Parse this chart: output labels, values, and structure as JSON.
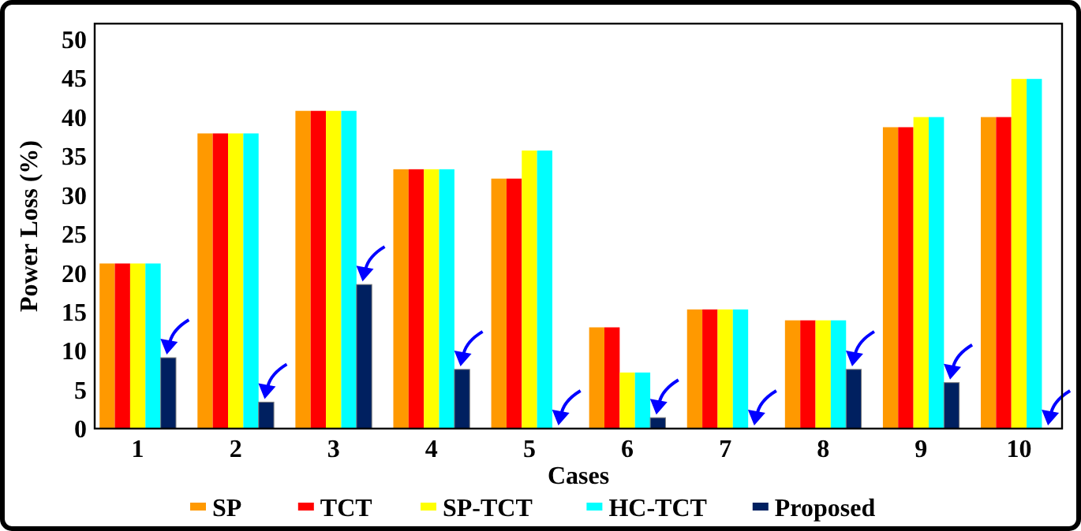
{
  "chart_data": {
    "type": "bar",
    "xlabel": "Cases",
    "ylabel": "Power Loss (%)",
    "categories": [
      "1",
      "2",
      "3",
      "4",
      "5",
      "6",
      "7",
      "8",
      "9",
      "10"
    ],
    "series": [
      {
        "name": "SP",
        "color": "#ff9900",
        "values": [
          21.2,
          37.9,
          40.8,
          33.3,
          32.1,
          13.0,
          15.3,
          13.9,
          38.7,
          40.0
        ]
      },
      {
        "name": "TCT",
        "color": "#ff0000",
        "values": [
          21.2,
          37.9,
          40.8,
          33.3,
          32.1,
          13.0,
          15.3,
          13.9,
          38.7,
          40.0
        ]
      },
      {
        "name": "SP-TCT",
        "color": "#ffff00",
        "values": [
          21.2,
          37.9,
          40.8,
          33.3,
          35.7,
          7.2,
          15.3,
          13.9,
          40.0,
          44.9
        ]
      },
      {
        "name": "HC-TCT",
        "color": "#00ffff",
        "values": [
          21.2,
          37.9,
          40.8,
          33.3,
          35.7,
          7.2,
          15.3,
          13.9,
          40.0,
          44.9
        ]
      },
      {
        "name": "Proposed",
        "color": "#002060",
        "values": [
          9.1,
          3.4,
          18.5,
          7.6,
          0,
          1.4,
          0,
          7.6,
          5.9,
          0
        ]
      }
    ],
    "ylim": [
      0,
      52
    ],
    "yticks": [
      0,
      5,
      10,
      15,
      20,
      25,
      30,
      35,
      40,
      45,
      50
    ],
    "grid": false,
    "legend": "bottom"
  }
}
